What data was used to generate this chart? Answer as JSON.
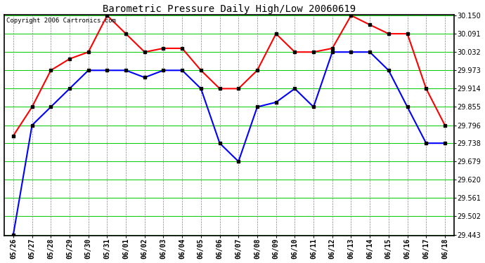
{
  "title": "Barometric Pressure Daily High/Low 20060619",
  "copyright": "Copyright 2006 Cartronics.com",
  "labels": [
    "05/26",
    "05/27",
    "05/28",
    "05/29",
    "05/30",
    "05/31",
    "06/01",
    "06/02",
    "06/03",
    "06/04",
    "06/05",
    "06/06",
    "06/07",
    "06/08",
    "06/09",
    "06/10",
    "06/11",
    "06/12",
    "06/13",
    "06/14",
    "06/15",
    "06/16",
    "06/17",
    "06/18"
  ],
  "high_values": [
    29.762,
    29.855,
    29.973,
    30.01,
    30.032,
    30.15,
    30.091,
    30.032,
    30.044,
    30.044,
    29.973,
    29.914,
    29.914,
    29.973,
    30.091,
    30.032,
    30.032,
    30.044,
    30.15,
    30.12,
    30.091,
    30.091,
    29.914,
    29.796
  ],
  "low_values": [
    29.443,
    29.796,
    29.855,
    29.914,
    29.973,
    29.973,
    29.973,
    29.95,
    29.973,
    29.973,
    29.914,
    29.738,
    29.679,
    29.855,
    29.87,
    29.914,
    29.855,
    30.032,
    30.032,
    30.032,
    29.973,
    29.855,
    29.738,
    29.738
  ],
  "high_color": "#ff0000",
  "low_color": "#0000ff",
  "marker_color": "#000000",
  "plot_bg_color": "#ffffff",
  "grid_h_color": "#00cc00",
  "grid_v_color": "#888888",
  "ylim_min": 29.443,
  "ylim_max": 30.15,
  "yticks": [
    29.443,
    29.502,
    29.561,
    29.62,
    29.679,
    29.738,
    29.796,
    29.855,
    29.914,
    29.973,
    30.032,
    30.091,
    30.15
  ],
  "title_fontsize": 10,
  "tick_fontsize": 7,
  "copyright_fontsize": 6.5,
  "line_width": 1.5,
  "marker_size": 3
}
